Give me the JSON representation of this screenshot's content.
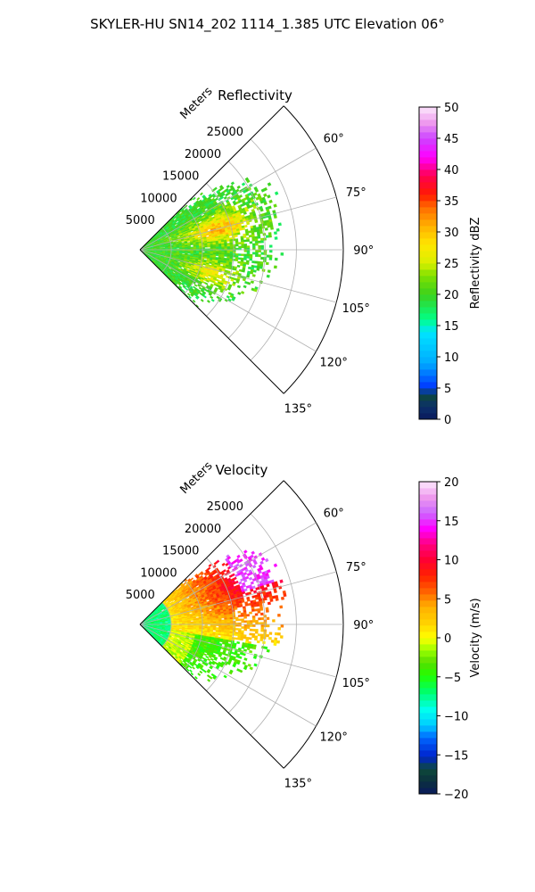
{
  "figure_title": "SKYLER-HU  SN14_202  1114_1.385 UTC Elevation 06°",
  "chart_data": [
    {
      "type": "heatmap",
      "projection": "polar-sector",
      "title": "Reflectivity",
      "radial_label": "Meters",
      "radial_ticks": [
        5000,
        10000,
        15000,
        20000,
        25000
      ],
      "radial_tick_labels": [
        "5000",
        "10000",
        "15000",
        "20000",
        "25000"
      ],
      "rmax": 32500,
      "theta_range_deg": [
        45,
        135
      ],
      "theta_ticks": [
        60,
        75,
        90,
        105,
        120,
        135
      ],
      "theta_tick_labels": [
        "60°",
        "75°",
        "90°",
        "105°",
        "120°",
        "135°"
      ],
      "grid": true,
      "colorbar": {
        "label": "Reflectivity dBZ",
        "min": 0,
        "max": 50,
        "ticks": [
          0,
          5,
          10,
          15,
          20,
          25,
          30,
          35,
          40,
          45,
          50
        ],
        "tick_labels": [
          "0",
          "5",
          "10",
          "15",
          "20",
          "25",
          "30",
          "35",
          "40",
          "45",
          "50"
        ]
      },
      "field_description": {
        "typical_value": 20,
        "range_extent_m": [
          0,
          23000
        ],
        "core_value": 28,
        "core_regions": [
          {
            "theta_deg": 75,
            "range_m": [
              9000,
              17000
            ],
            "value": 30
          },
          {
            "theta_deg": 108,
            "range_m": [
              9000,
              15000
            ],
            "value": 27
          }
        ],
        "near_edge_value": 14
      }
    },
    {
      "type": "heatmap",
      "projection": "polar-sector",
      "title": "Velocity",
      "radial_label": "Meters",
      "radial_ticks": [
        5000,
        10000,
        15000,
        20000,
        25000
      ],
      "radial_tick_labels": [
        "5000",
        "10000",
        "15000",
        "20000",
        "25000"
      ],
      "rmax": 32500,
      "theta_range_deg": [
        45,
        135
      ],
      "theta_ticks": [
        60,
        75,
        90,
        105,
        120,
        135
      ],
      "theta_tick_labels": [
        "60°",
        "75°",
        "90°",
        "105°",
        "120°",
        "135°"
      ],
      "grid": true,
      "colorbar": {
        "label": "Velocity (m/s)",
        "min": -20,
        "max": 20,
        "ticks": [
          -20,
          -15,
          -10,
          -5,
          0,
          5,
          10,
          15,
          20
        ],
        "tick_labels": [
          "−20",
          "−15",
          "−10",
          "−5",
          "0",
          "5",
          "10",
          "15",
          "20"
        ]
      },
      "field_description": {
        "near_value": -7,
        "mid_value": 1,
        "north_far_value": 10,
        "edge_value": 15,
        "south_far_value": -4
      }
    }
  ]
}
